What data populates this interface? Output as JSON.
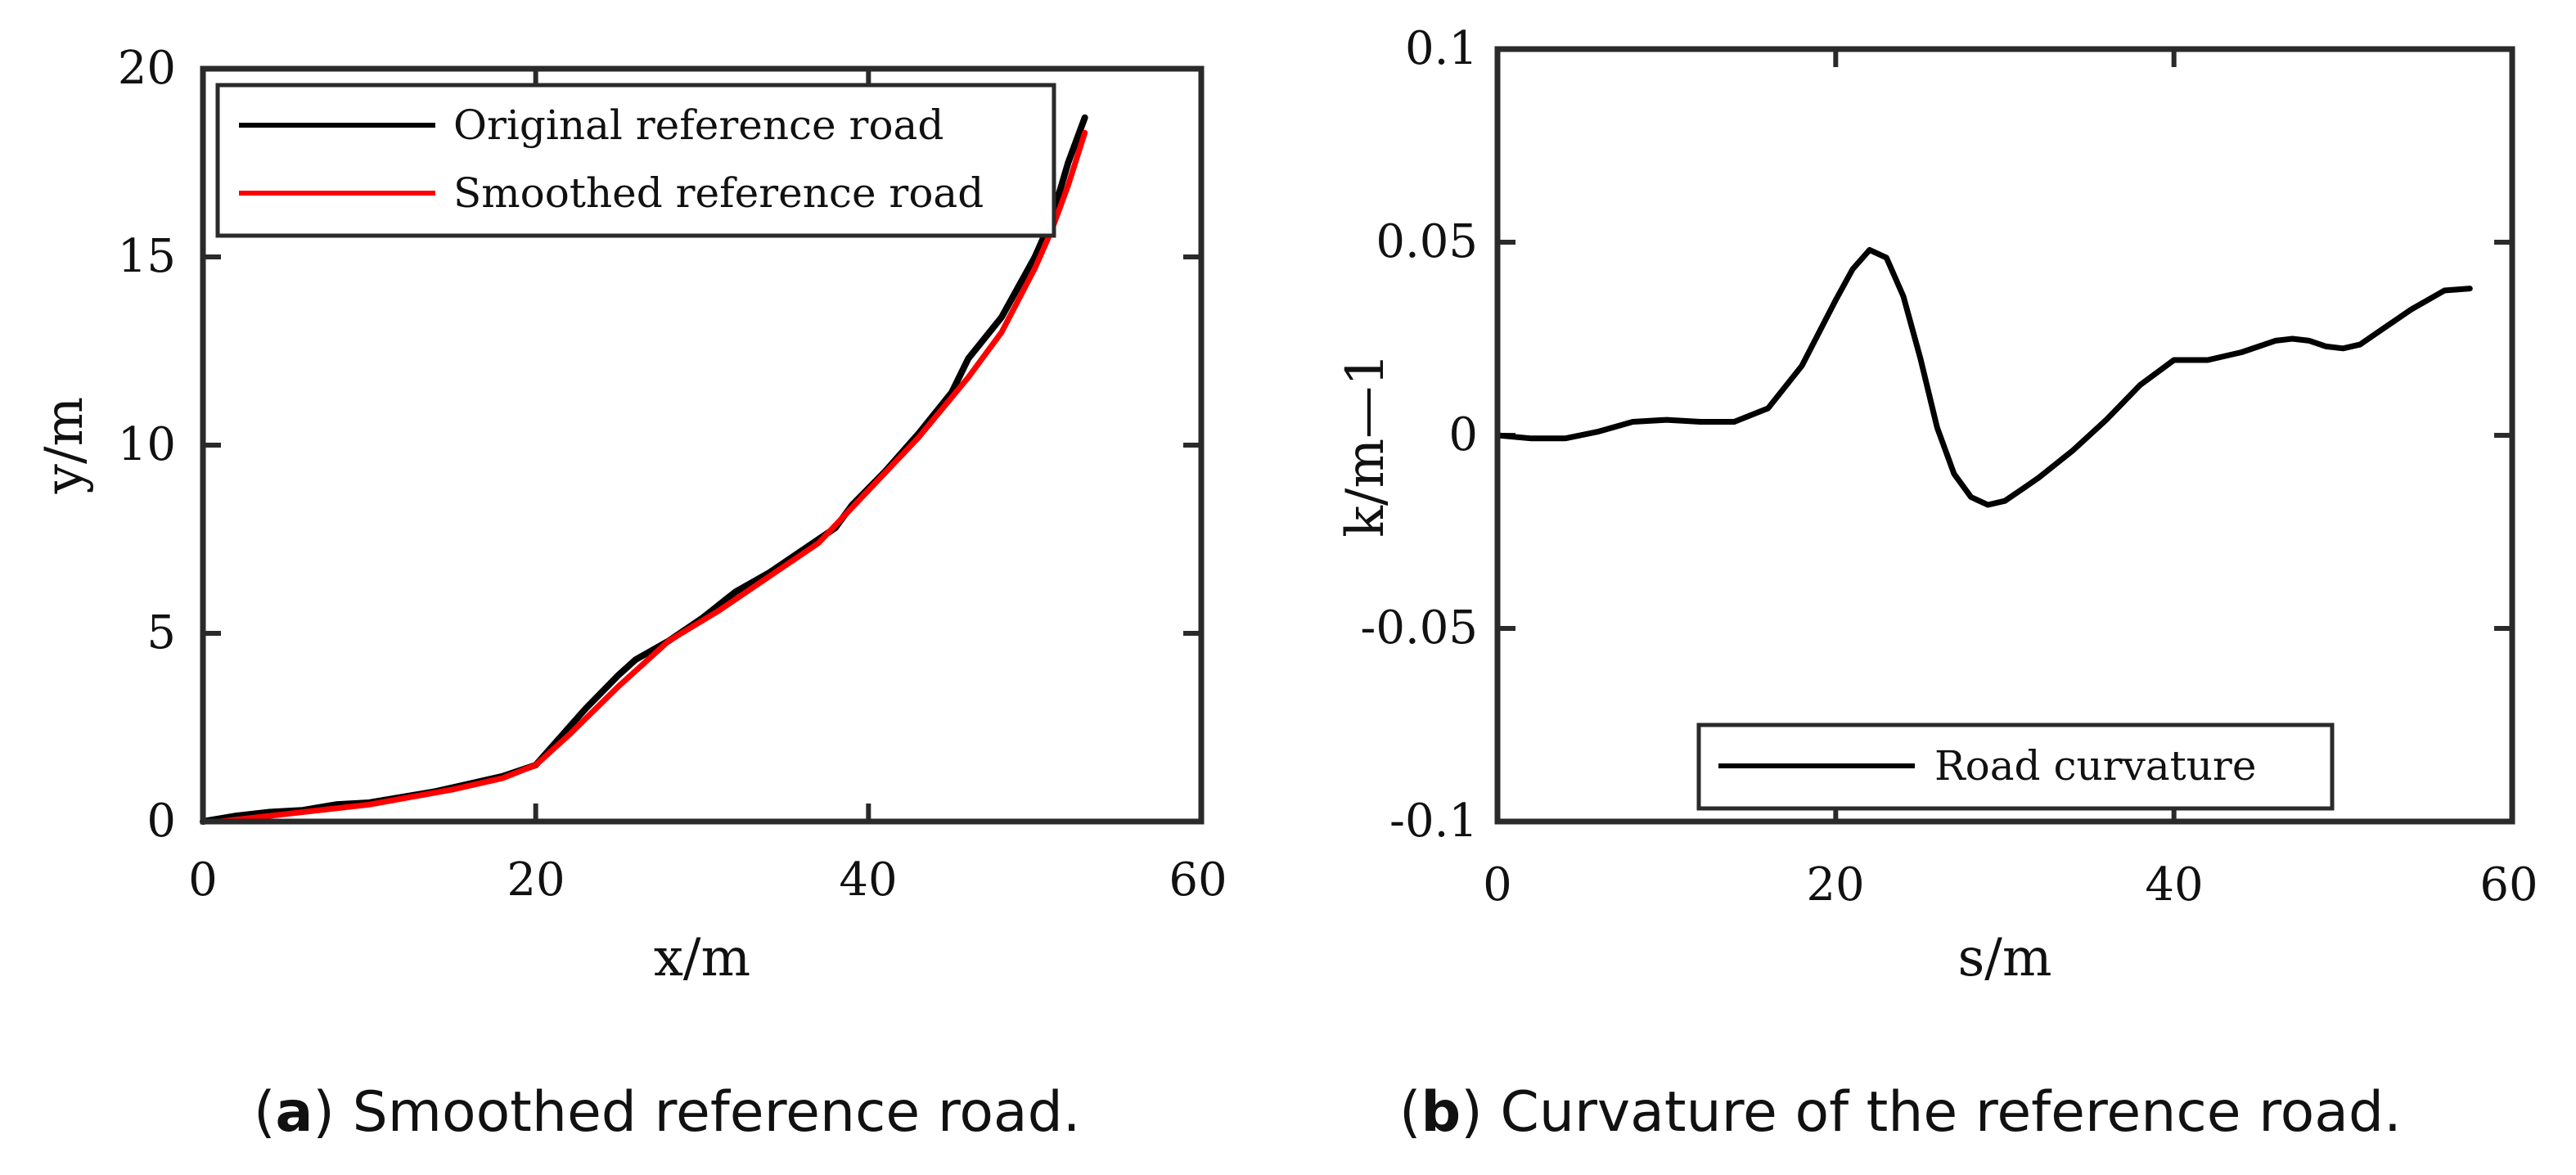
{
  "chart_data": [
    {
      "type": "line",
      "xlabel": "x/m",
      "ylabel": "y/m",
      "xlim": [
        0,
        60
      ],
      "ylim": [
        0,
        20
      ],
      "xticks": [
        "0",
        "20",
        "40",
        "60"
      ],
      "yticks": [
        "0",
        "5",
        "10",
        "15",
        "20"
      ],
      "legend_position": "top-left",
      "series": [
        {
          "name": "Original reference road",
          "color": "#000000",
          "x": [
            0,
            2,
            4,
            6,
            8,
            10,
            12,
            14,
            16,
            18,
            20,
            21,
            23,
            25,
            26,
            28,
            30,
            32,
            34,
            36,
            38,
            39,
            41,
            43,
            45,
            46,
            48,
            50,
            51,
            52,
            53
          ],
          "y": [
            0,
            0.15,
            0.25,
            0.3,
            0.45,
            0.5,
            0.65,
            0.8,
            1.0,
            1.2,
            1.5,
            2.0,
            3.0,
            3.9,
            4.3,
            4.8,
            5.4,
            6.1,
            6.6,
            7.2,
            7.8,
            8.4,
            9.3,
            10.3,
            11.4,
            12.3,
            13.4,
            15.0,
            16.0,
            17.5,
            18.7
          ]
        },
        {
          "name": "Smoothed reference road",
          "color": "#ff0000",
          "x": [
            1,
            5,
            10,
            15,
            18,
            20,
            22,
            25,
            28,
            31,
            34,
            37,
            40,
            43,
            46,
            48,
            50,
            51,
            52,
            53
          ],
          "y": [
            0,
            0.2,
            0.45,
            0.85,
            1.15,
            1.5,
            2.3,
            3.6,
            4.8,
            5.6,
            6.5,
            7.4,
            8.8,
            10.2,
            11.8,
            13.0,
            14.7,
            15.7,
            16.9,
            18.3
          ]
        }
      ]
    },
    {
      "type": "line",
      "xlabel": "s/m",
      "ylabel": "k/m—1",
      "xlim": [
        0,
        60
      ],
      "ylim": [
        -0.1,
        0.1
      ],
      "xticks": [
        "0",
        "20",
        "40",
        "60"
      ],
      "yticks": [
        "-0.1",
        "-0.05",
        "0",
        "0.05",
        "0.1"
      ],
      "legend_position": "bottom-right",
      "series": [
        {
          "name": "Road curvature",
          "color": "#000000",
          "x": [
            0,
            2,
            4,
            6,
            8,
            10,
            12,
            14,
            16,
            18,
            20,
            21,
            22,
            23,
            24,
            25,
            26,
            27,
            28,
            29,
            30,
            31,
            32,
            34,
            36,
            38,
            40,
            42,
            44,
            46,
            47,
            48,
            49,
            50,
            51,
            52,
            54,
            56,
            57.5
          ],
          "y": [
            0,
            -0.0008,
            -0.0008,
            0.001,
            0.0035,
            0.004,
            0.0035,
            0.0035,
            0.007,
            0.018,
            0.035,
            0.043,
            0.048,
            0.046,
            0.036,
            0.02,
            0.002,
            -0.01,
            -0.016,
            -0.018,
            -0.017,
            -0.014,
            -0.011,
            -0.004,
            0.004,
            0.013,
            0.0195,
            0.0195,
            0.0215,
            0.0245,
            0.025,
            0.0245,
            0.023,
            0.0225,
            0.0235,
            0.0265,
            0.0325,
            0.0375,
            0.038
          ]
        }
      ]
    }
  ],
  "captions": {
    "a": {
      "letter": "a",
      "text": " Smoothed reference road."
    },
    "b": {
      "letter": "b",
      "text": " Curvature of the reference road."
    }
  }
}
